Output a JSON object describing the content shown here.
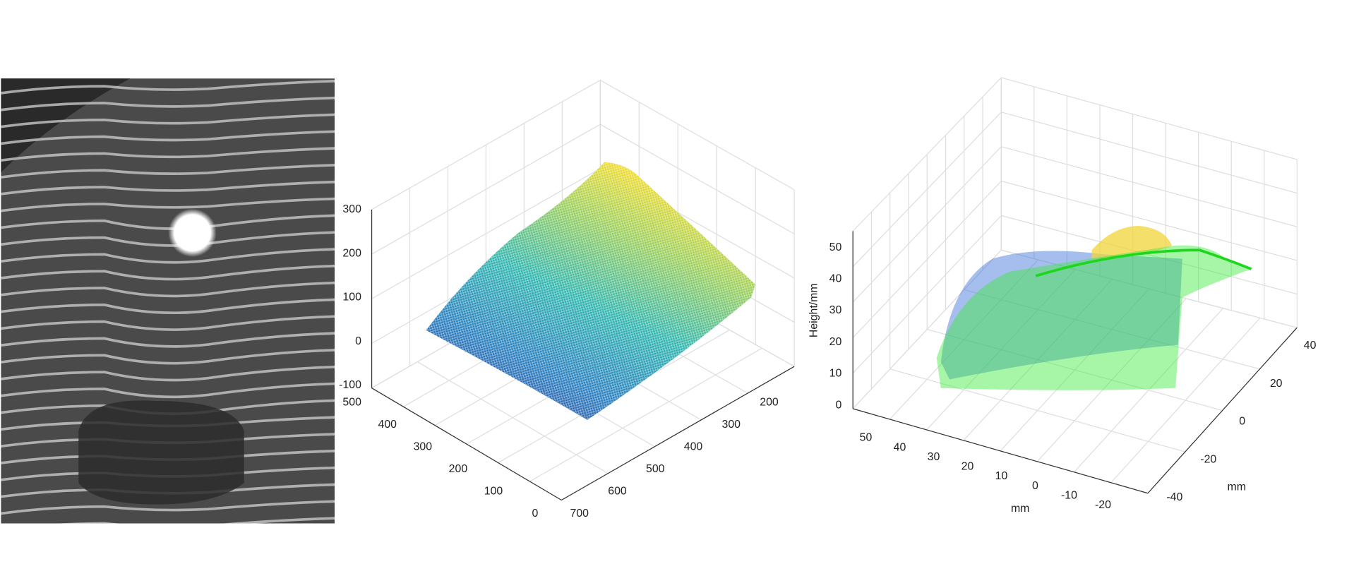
{
  "surface_plot": {
    "z_ticks": [
      300,
      200,
      100,
      0,
      -100
    ],
    "y_ticks": [
      500,
      400,
      300,
      200,
      100,
      0
    ],
    "x_ticks": [
      700,
      600,
      500,
      400,
      300,
      200
    ]
  },
  "point_cloud_plot": {
    "z_label": "Height/mm",
    "z_ticks": [
      50,
      40,
      30,
      20,
      10,
      0
    ],
    "x_label": "mm",
    "x_ticks": [
      50,
      40,
      30,
      20,
      10,
      0,
      -10,
      -20
    ],
    "y_label": "mm",
    "y_ticks": [
      40,
      20,
      0,
      -20,
      -40
    ]
  }
}
